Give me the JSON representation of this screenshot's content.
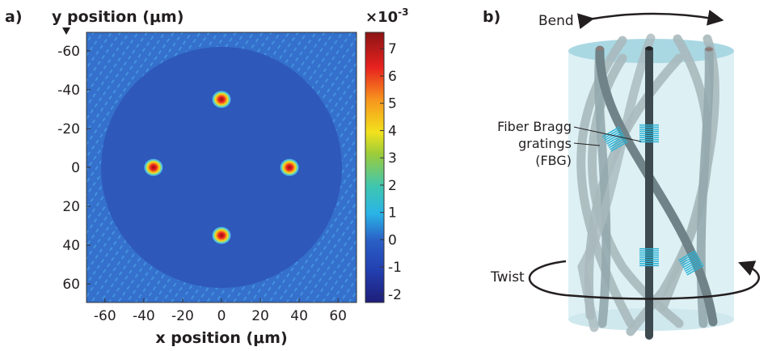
{
  "panel_a": {
    "label": "a)",
    "chart_data": {
      "type": "heatmap",
      "title": "",
      "xlabel": "x position (μm)",
      "ylabel": "y position (μm)",
      "xlim": [
        -69.5,
        69.5
      ],
      "ylim": [
        -69.5,
        69.5
      ],
      "y_inverted": true,
      "xticks": [
        "-60",
        "-40",
        "-20",
        "0",
        "20",
        "40",
        "60"
      ],
      "yticks": [
        "-60",
        "-40",
        "-20",
        "0",
        "20",
        "40",
        "60"
      ],
      "colorbar": {
        "multiplier": "×10",
        "exponent": "-3",
        "range": [
          -2.3,
          7.6
        ],
        "ticks": [
          "7",
          "6",
          "5",
          "4",
          "3",
          "2",
          "1",
          "0",
          "-1",
          "-2"
        ],
        "colormap": "jet"
      },
      "cladding_circle": {
        "center": [
          0,
          0
        ],
        "radius": 62,
        "value": -0.3
      },
      "background_value": 0.5,
      "peaks": [
        {
          "x": 0,
          "y": -35,
          "value": 7.5
        },
        {
          "x": -35,
          "y": 0,
          "value": 7.5
        },
        {
          "x": 35,
          "y": 0,
          "value": 7.5
        },
        {
          "x": 0,
          "y": 35,
          "value": 7.5
        }
      ]
    }
  },
  "panel_b": {
    "label": "b)",
    "bend_label": "Bend",
    "twist_label": "Twist",
    "fbg_label_lines": [
      "Fiber Bragg",
      "gratings",
      "(FBG)"
    ],
    "colors": {
      "cylinder": "#cfe9f0",
      "fiber_dark": "#3d4a4f",
      "fiber_mid": "#7c8f94",
      "fiber_light": "#a9b9bd",
      "grating": "#2bb3d6"
    }
  }
}
